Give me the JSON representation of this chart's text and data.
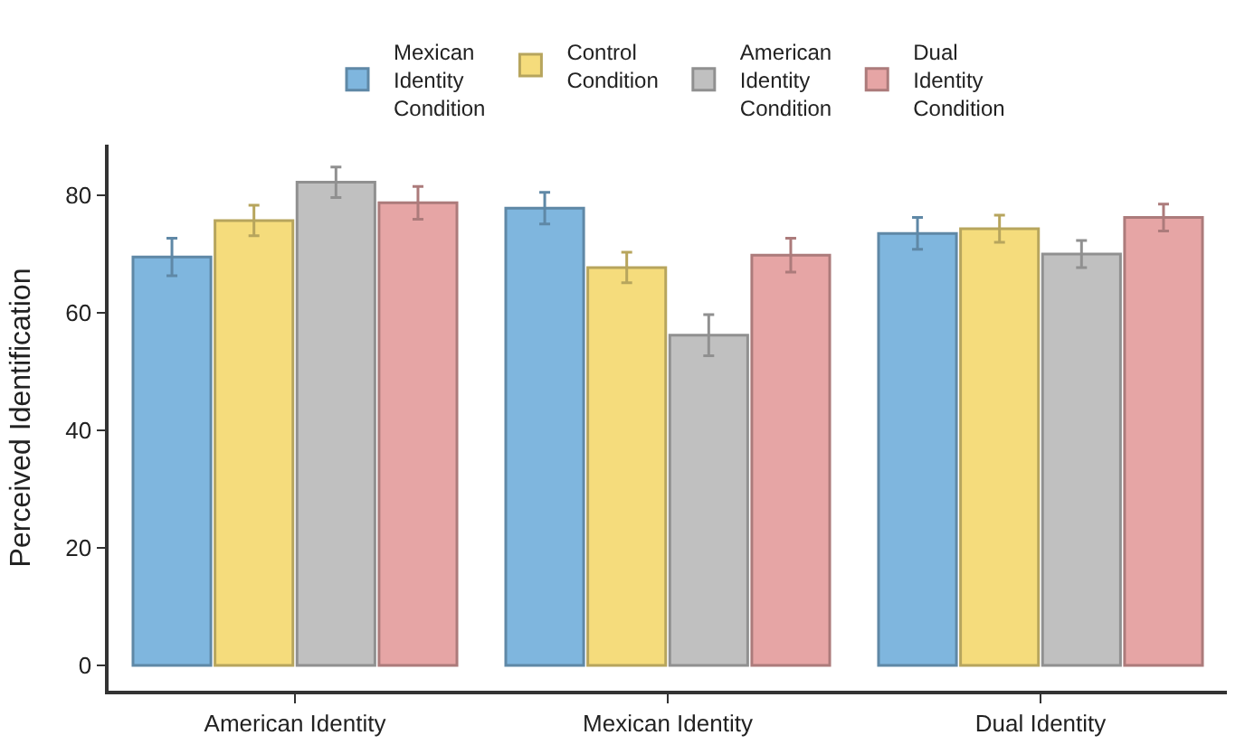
{
  "chart_data": {
    "type": "bar",
    "ylabel": "Perceived Identification",
    "categories": [
      "American Identity",
      "Mexican Identity",
      "Dual Identity"
    ],
    "series": [
      {
        "name": "Mexican Identity Condition",
        "color": "#7fb6de",
        "values": [
          69.5,
          77.8,
          73.5
        ],
        "errors": [
          3.2,
          2.7,
          2.7
        ]
      },
      {
        "name": "Control Condition",
        "color": "#f5dc7c",
        "values": [
          75.7,
          67.7,
          74.3
        ],
        "errors": [
          2.6,
          2.6,
          2.3
        ]
      },
      {
        "name": "American Identity Condition",
        "color": "#c0c0c0",
        "values": [
          82.2,
          56.2,
          70.0
        ],
        "errors": [
          2.6,
          3.5,
          2.3
        ]
      },
      {
        "name": "Dual Identity Condition",
        "color": "#e6a5a5",
        "values": [
          78.7,
          69.8,
          76.2
        ],
        "errors": [
          2.8,
          2.9,
          2.3
        ]
      }
    ],
    "ylim": [
      -4.3,
      88.6
    ],
    "yticks": [
      0,
      20,
      40,
      60,
      80
    ],
    "grid": false,
    "legend": "top"
  }
}
